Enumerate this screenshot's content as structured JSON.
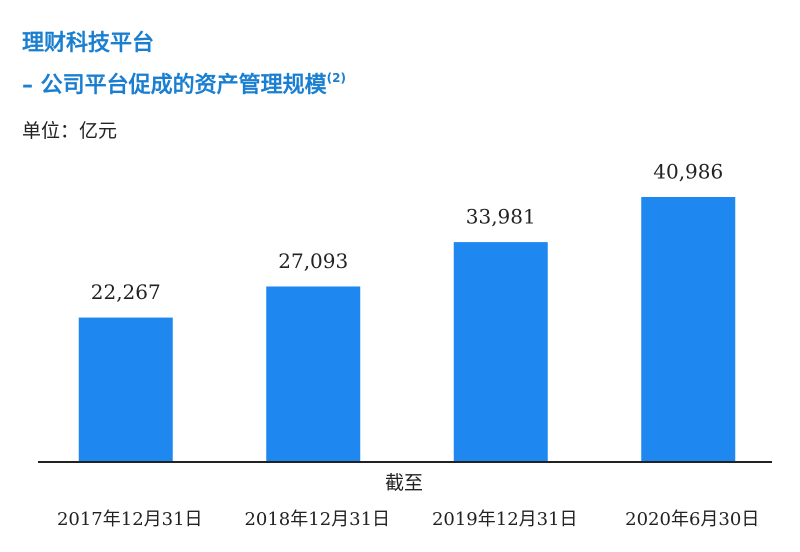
{
  "chart_data": {
    "type": "bar",
    "title": "理财科技平台",
    "subtitle": "– 公司平台促成的资产管理规模",
    "subtitle_note": "(2)",
    "unit": "单位：亿元",
    "x_label": "截至",
    "categories": [
      "2017年12月31日",
      "2018年12月31日",
      "2019年12月31日",
      "2020年6月30日"
    ],
    "values": [
      22267,
      27093,
      33981,
      40986
    ],
    "value_labels": [
      "22,267",
      "27,093",
      "33,981",
      "40,986"
    ],
    "color": "#1e88f0"
  }
}
